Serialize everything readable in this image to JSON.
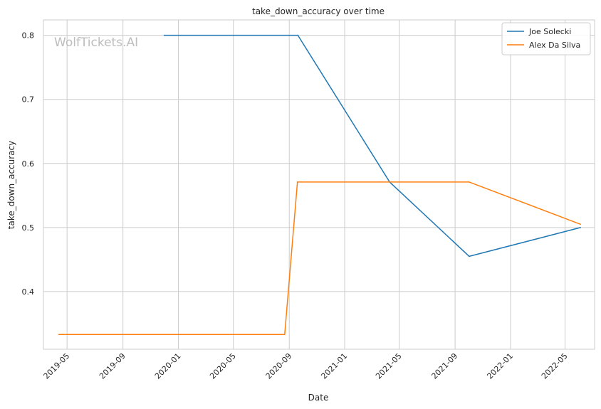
{
  "chart_data": {
    "type": "line",
    "title": "take_down_accuracy over time",
    "xlabel": "Date",
    "ylabel": "take_down_accuracy",
    "watermark": "WolfTickets.AI",
    "x_ticks": [
      "2019-05",
      "2019-09",
      "2020-01",
      "2020-05",
      "2020-09",
      "2021-01",
      "2021-05",
      "2021-09",
      "2022-01",
      "2022-05"
    ],
    "y_ticks": [
      "0.4",
      "0.5",
      "0.6",
      "0.7",
      "0.8"
    ],
    "xlim": [
      "2019-03-10",
      "2022-07-05"
    ],
    "ylim": [
      0.31,
      0.824
    ],
    "grid": true,
    "legend_position": "top-right",
    "series": [
      {
        "name": "Joe Solecki",
        "color": "#1f77b4",
        "points": [
          [
            "2019-12-01",
            0.8
          ],
          [
            "2020-09-20",
            0.8
          ],
          [
            "2021-04-10",
            0.571
          ],
          [
            "2021-10-02",
            0.455
          ],
          [
            "2022-06-04",
            0.5
          ]
        ]
      },
      {
        "name": "Alex Da Silva",
        "color": "#ff7f0e",
        "points": [
          [
            "2019-04-13",
            0.333
          ],
          [
            "2020-08-22",
            0.333
          ],
          [
            "2020-09-19",
            0.571
          ],
          [
            "2021-10-02",
            0.571
          ],
          [
            "2022-06-04",
            0.505
          ]
        ]
      }
    ]
  }
}
